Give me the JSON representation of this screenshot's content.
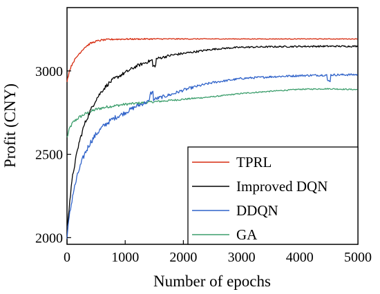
{
  "chart_data": {
    "type": "line",
    "xlabel": "Number of epochs",
    "ylabel": "Profit (CNY)",
    "xlim": [
      0,
      5000
    ],
    "ylim": [
      1960,
      3380
    ],
    "x_ticks": [
      0,
      1000,
      2000,
      3000,
      4000,
      5000
    ],
    "x_tick_labels": [
      "0",
      "1000",
      "2000",
      "3000",
      "4000",
      "5000"
    ],
    "y_ticks": [
      2000,
      2500,
      3000
    ],
    "y_tick_labels": [
      "2000",
      "2500",
      "3000"
    ],
    "grid": false,
    "legend_position": "bottom-right",
    "series": [
      {
        "name": "TPRL",
        "color": "#d62a0e",
        "x": [
          0,
          50,
          100,
          200,
          300,
          400,
          500,
          600,
          700,
          800,
          1000,
          1500,
          2000,
          3000,
          4000,
          5000
        ],
        "y": [
          2940,
          3010,
          3050,
          3100,
          3140,
          3165,
          3178,
          3185,
          3188,
          3190,
          3191,
          3192,
          3192,
          3192,
          3192,
          3192
        ]
      },
      {
        "name": "Improved DQN",
        "color": "#000000",
        "x": [
          0,
          25,
          50,
          100,
          200,
          300,
          400,
          500,
          600,
          700,
          800,
          1000,
          1200,
          1500,
          1800,
          2000,
          2200,
          2500,
          2800,
          3000,
          3500,
          4000,
          4500,
          5000
        ],
        "y": [
          2060,
          2140,
          2230,
          2380,
          2560,
          2680,
          2760,
          2830,
          2880,
          2920,
          2950,
          2990,
          3030,
          3070,
          3095,
          3105,
          3115,
          3130,
          3138,
          3142,
          3145,
          3147,
          3148,
          3148
        ]
      },
      {
        "name": "DDQN",
        "color": "#2f62c9",
        "x": [
          0,
          25,
          50,
          100,
          200,
          300,
          400,
          500,
          600,
          700,
          800,
          1000,
          1200,
          1500,
          1800,
          2000,
          2200,
          2500,
          3000,
          3500,
          4000,
          4500,
          5000
        ],
        "y": [
          2010,
          2080,
          2150,
          2260,
          2400,
          2500,
          2570,
          2620,
          2660,
          2690,
          2715,
          2750,
          2790,
          2830,
          2860,
          2885,
          2905,
          2930,
          2955,
          2965,
          2972,
          2976,
          2978
        ]
      },
      {
        "name": "GA",
        "color": "#3c9e6c",
        "x": [
          0,
          50,
          100,
          200,
          300,
          400,
          500,
          700,
          1000,
          1500,
          2000,
          2500,
          3000,
          3500,
          4000,
          4500,
          5000
        ],
        "y": [
          2600,
          2660,
          2690,
          2720,
          2740,
          2755,
          2770,
          2785,
          2800,
          2815,
          2830,
          2845,
          2865,
          2878,
          2890,
          2893,
          2888
        ]
      }
    ]
  }
}
